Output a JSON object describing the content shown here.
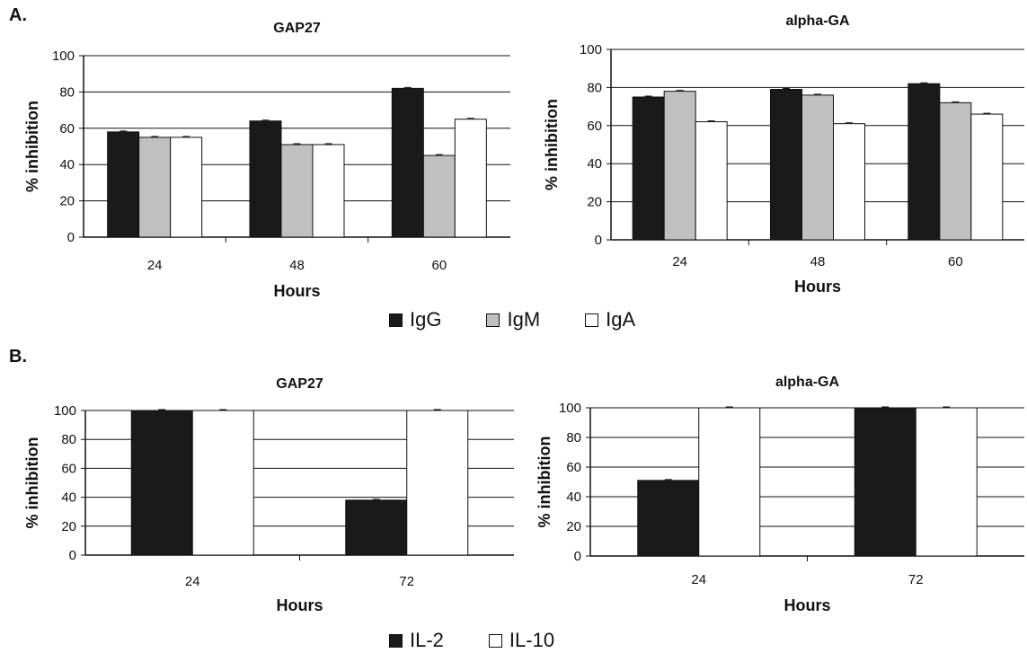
{
  "panels": {
    "a": {
      "label": "A.",
      "legend": [
        {
          "name": "IgG",
          "color": "#1a1a1a"
        },
        {
          "name": "IgM",
          "color": "#c0c0c0"
        },
        {
          "name": "IgA",
          "color": "#ffffff"
        }
      ]
    },
    "b": {
      "label": "B.",
      "legend": [
        {
          "name": "IL-2",
          "color": "#1a1a1a"
        },
        {
          "name": "IL-10",
          "color": "#ffffff"
        }
      ]
    }
  },
  "chart_data": [
    {
      "type": "bar",
      "title": "GAP27",
      "xlabel": "Hours",
      "ylabel": "% inhibition",
      "ylim": [
        0,
        100
      ],
      "yticks": [
        0,
        20,
        40,
        60,
        80,
        100
      ],
      "categories": [
        "24",
        "48",
        "60"
      ],
      "series": [
        {
          "name": "IgG",
          "color": "#1a1a1a",
          "values": [
            58,
            64,
            82
          ]
        },
        {
          "name": "IgM",
          "color": "#c0c0c0",
          "values": [
            55,
            51,
            45
          ]
        },
        {
          "name": "IgA",
          "color": "#ffffff",
          "values": [
            55,
            51,
            65
          ]
        }
      ],
      "grid": true
    },
    {
      "type": "bar",
      "title": "alpha-GA",
      "xlabel": "Hours",
      "ylabel": "% inhibition",
      "ylim": [
        0,
        100
      ],
      "yticks": [
        0,
        20,
        40,
        60,
        80,
        100
      ],
      "categories": [
        "24",
        "48",
        "60"
      ],
      "series": [
        {
          "name": "IgG",
          "color": "#1a1a1a",
          "values": [
            75,
            79,
            82
          ]
        },
        {
          "name": "IgM",
          "color": "#c0c0c0",
          "values": [
            78,
            76,
            72
          ]
        },
        {
          "name": "IgA",
          "color": "#ffffff",
          "values": [
            62,
            61,
            66
          ]
        }
      ],
      "grid": true
    },
    {
      "type": "bar",
      "title": "GAP27",
      "xlabel": "Hours",
      "ylabel": "% inhibition",
      "ylim": [
        0,
        100
      ],
      "yticks": [
        0,
        20,
        40,
        60,
        80,
        100
      ],
      "categories": [
        "24",
        "72"
      ],
      "series": [
        {
          "name": "IL-2",
          "color": "#1a1a1a",
          "values": [
            100,
            38
          ]
        },
        {
          "name": "IL-10",
          "color": "#ffffff",
          "values": [
            100,
            100
          ]
        }
      ],
      "grid": true
    },
    {
      "type": "bar",
      "title": "alpha-GA",
      "xlabel": "Hours",
      "ylabel": "% inhibition",
      "ylim": [
        0,
        100
      ],
      "yticks": [
        0,
        20,
        40,
        60,
        80,
        100
      ],
      "categories": [
        "24",
        "72"
      ],
      "series": [
        {
          "name": "IL-2",
          "color": "#1a1a1a",
          "values": [
            51,
            100
          ]
        },
        {
          "name": "IL-10",
          "color": "#ffffff",
          "values": [
            100,
            100
          ]
        }
      ],
      "grid": true
    }
  ]
}
